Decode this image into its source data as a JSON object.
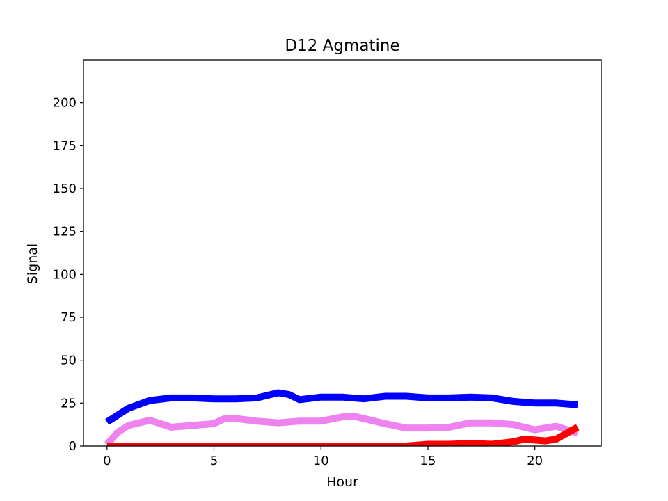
{
  "chart_data": {
    "type": "line",
    "title": "D12 Agmatine",
    "xlabel": "Hour",
    "ylabel": "Signal",
    "xlim": [
      -1.1,
      23.1
    ],
    "ylim": [
      0,
      225
    ],
    "xticks": [
      0,
      5,
      10,
      15,
      20
    ],
    "yticks": [
      0,
      25,
      50,
      75,
      100,
      125,
      150,
      175,
      200
    ],
    "grid": false,
    "legend": "none",
    "series": [
      {
        "color": "#0000ff",
        "x": [
          0,
          1,
          2,
          3,
          4,
          5,
          6,
          7,
          8,
          8.5,
          9,
          10,
          11,
          12,
          13,
          14,
          15,
          16,
          17,
          18,
          19,
          20,
          21,
          22
        ],
        "y": [
          14,
          22,
          26.5,
          28,
          28,
          27.5,
          27.5,
          28,
          31,
          30,
          27,
          28.5,
          28.5,
          27.5,
          29,
          29,
          28,
          28,
          28.5,
          28,
          26,
          25,
          25,
          24
        ]
      },
      {
        "color": "#ee82ee",
        "x": [
          0,
          0.5,
          1,
          2,
          3,
          4,
          5,
          5.5,
          6,
          7,
          8,
          9,
          10,
          11,
          11.5,
          12,
          13,
          14,
          15,
          16,
          17,
          18,
          19,
          20,
          21,
          22
        ],
        "y": [
          1,
          8,
          12,
          15,
          11,
          12,
          13,
          16,
          16,
          14.5,
          13.5,
          14.5,
          14.5,
          17,
          17.5,
          16,
          13,
          10.5,
          10.5,
          11,
          13.5,
          13.5,
          12.5,
          9.5,
          11.5,
          7.5
        ]
      },
      {
        "color": "#ff0000",
        "x": [
          0,
          5,
          10,
          14,
          15,
          16,
          17,
          18,
          19,
          19.5,
          20,
          20.5,
          21,
          22
        ],
        "y": [
          0,
          0,
          0,
          0,
          1,
          1,
          1.5,
          1,
          2.5,
          4,
          3.5,
          3,
          4,
          11
        ]
      }
    ]
  }
}
